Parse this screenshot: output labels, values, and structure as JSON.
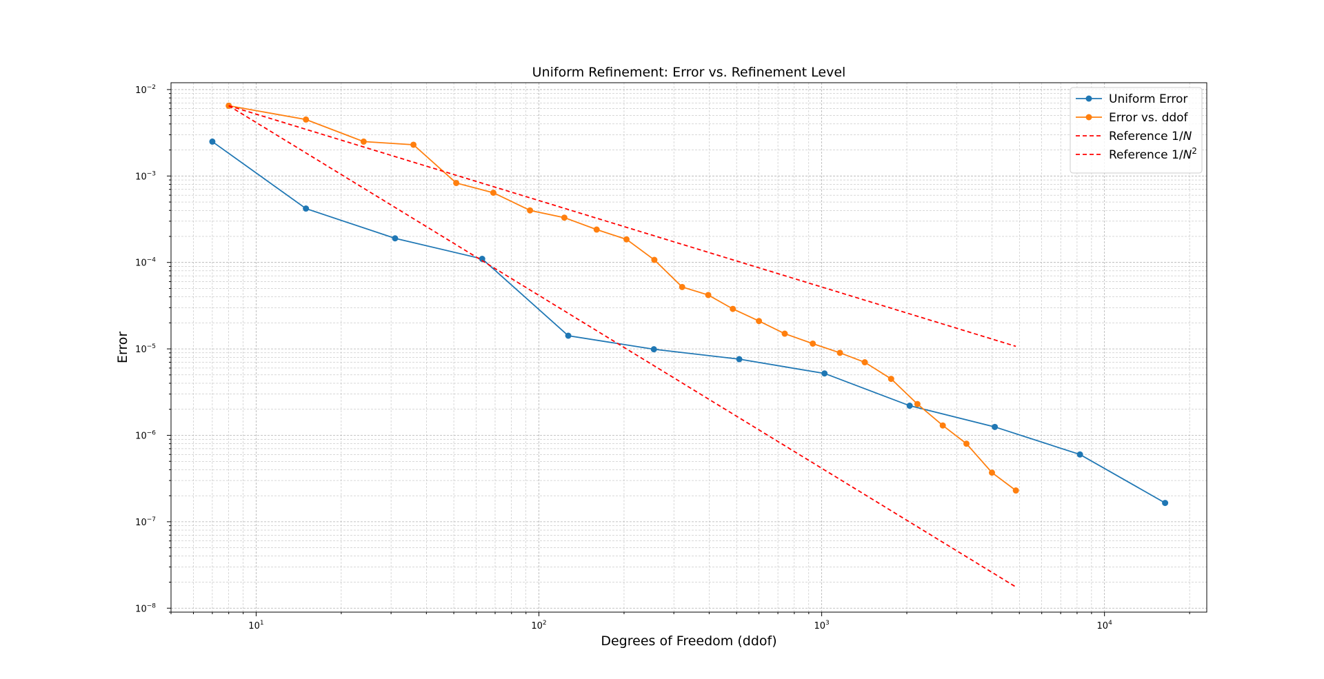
{
  "chart_data": {
    "type": "line",
    "title": "Uniform Refinement: Error vs. Refinement Level",
    "xlabel": "Degrees of Freedom (ddof)",
    "ylabel": "Error",
    "xscale": "log",
    "yscale": "log",
    "xlim": [
      5,
      23000
    ],
    "ylim": [
      9e-09,
      0.012
    ],
    "x_ticks": [
      {
        "base": "10",
        "exp": "1",
        "value": 10
      },
      {
        "base": "10",
        "exp": "2",
        "value": 100
      },
      {
        "base": "10",
        "exp": "3",
        "value": 1000
      },
      {
        "base": "10",
        "exp": "4",
        "value": 10000
      }
    ],
    "y_ticks": [
      {
        "base": "10",
        "exp": "−8",
        "value": 1e-08
      },
      {
        "base": "10",
        "exp": "−7",
        "value": 1e-07
      },
      {
        "base": "10",
        "exp": "−6",
        "value": 1e-06
      },
      {
        "base": "10",
        "exp": "−5",
        "value": 1e-05
      },
      {
        "base": "10",
        "exp": "−4",
        "value": 0.0001
      },
      {
        "base": "10",
        "exp": "−3",
        "value": 0.001
      },
      {
        "base": "10",
        "exp": "−2",
        "value": 0.01
      }
    ],
    "grid": true,
    "legend_position": "top-right",
    "series": [
      {
        "name": "Uniform Error",
        "color": "#1f77b4",
        "style": "solid",
        "marker": true,
        "x": [
          7,
          15,
          31,
          63,
          127,
          255,
          511,
          1023,
          2047,
          4095,
          8191,
          16383
        ],
        "y": [
          0.0025,
          0.00042,
          0.00019,
          0.00011,
          1.42e-05,
          9.9e-06,
          7.6e-06,
          5.2e-06,
          2.2e-06,
          1.25e-06,
          6e-07,
          1.65e-07
        ]
      },
      {
        "name": "Error vs. ddof",
        "color": "#ff7f0e",
        "style": "solid",
        "marker": true,
        "x": [
          8,
          15,
          24,
          36,
          51,
          69,
          93,
          123,
          160,
          204,
          256,
          321,
          397,
          485,
          600,
          740,
          930,
          1160,
          1420,
          1760,
          2180,
          2680,
          3250,
          4000,
          4860
        ],
        "y": [
          0.0065,
          0.0045,
          0.0025,
          0.0023,
          0.00083,
          0.00064,
          0.0004,
          0.00033,
          0.00024,
          0.000185,
          0.000107,
          5.2e-05,
          4.2e-05,
          2.9e-05,
          2.1e-05,
          1.5e-05,
          1.15e-05,
          9e-06,
          7e-06,
          4.5e-06,
          2.3e-06,
          1.3e-06,
          8e-07,
          3.7e-07,
          2.3e-07
        ]
      },
      {
        "name_prefix": "Reference 1/",
        "name_var": "N",
        "name_sup": "",
        "color": "#ff0000",
        "style": "dashed",
        "marker": false,
        "x": [
          8,
          4860
        ],
        "y": [
          0.0065,
          1.07e-05
        ]
      },
      {
        "name_prefix": "Reference 1/",
        "name_var": "N",
        "name_sup": "2",
        "color": "#ff0000",
        "style": "dashed",
        "marker": false,
        "x": [
          8,
          4860
        ],
        "y": [
          0.0065,
          1.76e-08
        ]
      }
    ]
  }
}
